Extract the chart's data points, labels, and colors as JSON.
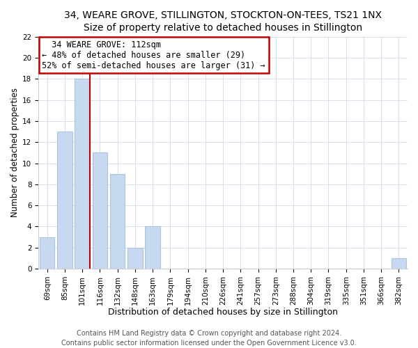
{
  "title": "34, WEARE GROVE, STILLINGTON, STOCKTON-ON-TEES, TS21 1NX",
  "subtitle": "Size of property relative to detached houses in Stillington",
  "xlabel": "Distribution of detached houses by size in Stillington",
  "ylabel": "Number of detached properties",
  "bar_labels": [
    "69sqm",
    "85sqm",
    "101sqm",
    "116sqm",
    "132sqm",
    "148sqm",
    "163sqm",
    "179sqm",
    "194sqm",
    "210sqm",
    "226sqm",
    "241sqm",
    "257sqm",
    "273sqm",
    "288sqm",
    "304sqm",
    "319sqm",
    "335sqm",
    "351sqm",
    "366sqm",
    "382sqm"
  ],
  "bar_values": [
    3,
    13,
    18,
    11,
    9,
    2,
    4,
    0,
    0,
    0,
    0,
    0,
    0,
    0,
    0,
    0,
    0,
    0,
    0,
    0,
    1
  ],
  "bar_color": "#c6d9f0",
  "bar_edge_color": "#a8c4e0",
  "marker_line_color": "#c00000",
  "annotation_box_color": "#ffffff",
  "annotation_border_color": "#c00000",
  "annotation_title": "34 WEARE GROVE: 112sqm",
  "annotation_line1": "← 48% of detached houses are smaller (29)",
  "annotation_line2": "52% of semi-detached houses are larger (31) →",
  "ylim": [
    0,
    22
  ],
  "yticks": [
    0,
    2,
    4,
    6,
    8,
    10,
    12,
    14,
    16,
    18,
    20,
    22
  ],
  "footnote1": "Contains HM Land Registry data © Crown copyright and database right 2024.",
  "footnote2": "Contains public sector information licensed under the Open Government Licence v3.0.",
  "title_fontsize": 10,
  "subtitle_fontsize": 9.5,
  "xlabel_fontsize": 9,
  "ylabel_fontsize": 8.5,
  "tick_fontsize": 7.5,
  "annotation_fontsize": 8.5,
  "footnote_fontsize": 7
}
